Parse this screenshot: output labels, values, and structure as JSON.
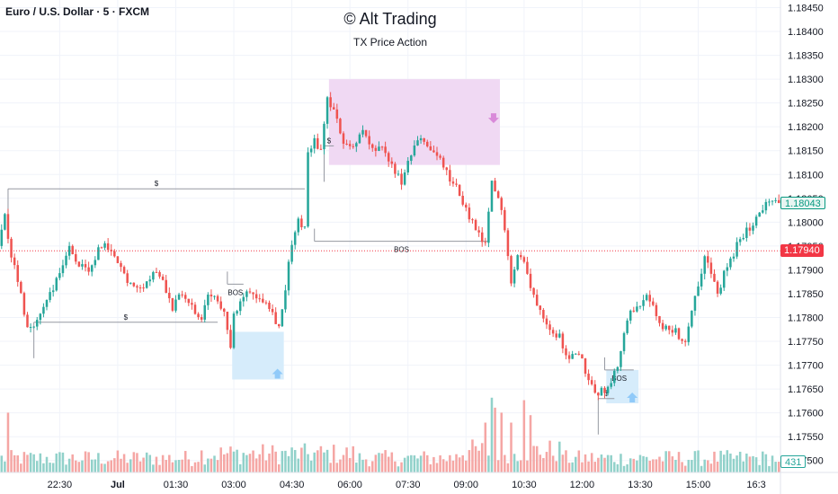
{
  "header": {
    "symbol": "Euro / U.S. Dollar · 5 · FXCM",
    "watermark_title": "© Alt Trading",
    "watermark_subtitle": "TX Price Action"
  },
  "chart_data": {
    "type": "candlestick",
    "series_name": "Euro / U.S. Dollar",
    "interval": "5",
    "source": "FXCM",
    "y_axis": {
      "ticks": [
        1.1845,
        1.184,
        1.1835,
        1.183,
        1.1825,
        1.182,
        1.1815,
        1.181,
        1.1805,
        1.18,
        1.1795,
        1.179,
        1.1785,
        1.178,
        1.1775,
        1.177,
        1.1765,
        1.176,
        1.1755,
        1.175
      ],
      "tick_labels": [
        "1.18450",
        "1.18400",
        "1.18350",
        "1.18300",
        "1.18250",
        "1.18200",
        "1.18150",
        "1.18100",
        "1.18050",
        "1.18000",
        "1.17950",
        "1.17900",
        "1.17850",
        "1.17800",
        "1.17750",
        "1.17700",
        "1.17650",
        "1.17600",
        "1.17550",
        "1.17500"
      ],
      "range": [
        1.17475,
        1.18466
      ]
    },
    "x_axis": {
      "tick_labels": [
        "22:30",
        "Jul",
        "01:30",
        "03:00",
        "04:30",
        "06:00",
        "07:30",
        "09:00",
        "10:30",
        "12:00",
        "13:30",
        "15:00",
        "16:3"
      ],
      "tick_bars": [
        18,
        36,
        54,
        72,
        90,
        108,
        126,
        144,
        162,
        180,
        198,
        216,
        234
      ],
      "bold_labels": [
        "Jul"
      ],
      "bar_count": 242
    },
    "price_path": [
      [
        0,
        1.1795
      ],
      [
        2,
        1.1801
      ],
      [
        4,
        1.1793
      ],
      [
        6,
        1.1788
      ],
      [
        9,
        1.1778
      ],
      [
        12,
        1.1779
      ],
      [
        15,
        1.1784
      ],
      [
        19,
        1.1789
      ],
      [
        22,
        1.1795
      ],
      [
        25,
        1.1791
      ],
      [
        28,
        1.1789
      ],
      [
        31,
        1.1794
      ],
      [
        34,
        1.1795
      ],
      [
        37,
        1.1791
      ],
      [
        41,
        1.1787
      ],
      [
        45,
        1.1787
      ],
      [
        49,
        1.179
      ],
      [
        51,
        1.1788
      ],
      [
        54,
        1.1782
      ],
      [
        57,
        1.1785
      ],
      [
        60,
        1.1782
      ],
      [
        63,
        1.1779
      ],
      [
        65,
        1.1785
      ],
      [
        68,
        1.1783
      ],
      [
        70,
        1.1782
      ],
      [
        72,
        1.1774
      ],
      [
        73,
        1.178
      ],
      [
        75,
        1.1783
      ],
      [
        78,
        1.1786
      ],
      [
        80,
        1.1784
      ],
      [
        83,
        1.1784
      ],
      [
        85,
        1.1781
      ],
      [
        87,
        1.1778
      ],
      [
        89,
        1.1786
      ],
      [
        91,
        1.1796
      ],
      [
        93,
        1.18
      ],
      [
        95,
        1.1799
      ],
      [
        96,
        1.1815
      ],
      [
        98,
        1.1817
      ],
      [
        100,
        1.1815
      ],
      [
        102,
        1.1826
      ],
      [
        104,
        1.1823
      ],
      [
        107,
        1.1817
      ],
      [
        110,
        1.1816
      ],
      [
        113,
        1.1819
      ],
      [
        116,
        1.1815
      ],
      [
        119,
        1.1815
      ],
      [
        122,
        1.1812
      ],
      [
        125,
        1.1808
      ],
      [
        128,
        1.1814
      ],
      [
        131,
        1.1818
      ],
      [
        134,
        1.1815
      ],
      [
        137,
        1.1813
      ],
      [
        140,
        1.1809
      ],
      [
        143,
        1.1806
      ],
      [
        146,
        1.1801
      ],
      [
        149,
        1.1797
      ],
      [
        151,
        1.1795
      ],
      [
        153,
        1.1808
      ],
      [
        155,
        1.1805
      ],
      [
        157,
        1.1799
      ],
      [
        159,
        1.1788
      ],
      [
        161,
        1.1793
      ],
      [
        163,
        1.1792
      ],
      [
        165,
        1.1786
      ],
      [
        168,
        1.1782
      ],
      [
        171,
        1.1778
      ],
      [
        174,
        1.1776
      ],
      [
        177,
        1.1771
      ],
      [
        180,
        1.1773
      ],
      [
        183,
        1.1767
      ],
      [
        186,
        1.1764
      ],
      [
        188,
        1.1765
      ],
      [
        190,
        1.1766
      ],
      [
        192,
        1.177
      ],
      [
        194,
        1.1776
      ],
      [
        196,
        1.1781
      ],
      [
        198,
        1.1782
      ],
      [
        200,
        1.1784
      ],
      [
        202,
        1.1784
      ],
      [
        204,
        1.178
      ],
      [
        206,
        1.1777
      ],
      [
        208,
        1.1778
      ],
      [
        210,
        1.1777
      ],
      [
        213,
        1.1775
      ],
      [
        215,
        1.1782
      ],
      [
        217,
        1.1787
      ],
      [
        219,
        1.1793
      ],
      [
        221,
        1.1789
      ],
      [
        223,
        1.1785
      ],
      [
        225,
        1.1789
      ],
      [
        228,
        1.1793
      ],
      [
        230,
        1.1797
      ],
      [
        232,
        1.1798
      ],
      [
        235,
        1.1801
      ],
      [
        238,
        1.1804
      ],
      [
        241,
        1.18043
      ]
    ],
    "current_price": 1.1804,
    "current_price_label": "1.18043",
    "reference_price": 1.1794,
    "reference_price_label": "1.17940",
    "volume": {
      "last_value": 431,
      "last_value_label": "431",
      "range": [
        0,
        3100
      ],
      "baseline": 600,
      "spikes": [
        {
          "bar": 2,
          "value": 2400
        },
        {
          "bar": 150,
          "value": 2000
        },
        {
          "bar": 152,
          "value": 3000
        },
        {
          "bar": 153,
          "value": 2600
        },
        {
          "bar": 155,
          "value": 2400
        },
        {
          "bar": 158,
          "value": 2000
        },
        {
          "bar": 162,
          "value": 2900
        },
        {
          "bar": 164,
          "value": 2300
        }
      ]
    },
    "annotations": [
      {
        "type": "order_block",
        "color": "#f0d9f3",
        "from_bar": 102,
        "to_bar": 154,
        "top": 1.183,
        "bottom": 1.1812,
        "arrow": "down"
      },
      {
        "type": "order_block",
        "color": "#d6ecfb",
        "from_bar": 72,
        "to_bar": 87,
        "top": 1.1777,
        "bottom": 1.1767,
        "arrow": "up"
      },
      {
        "type": "order_block",
        "color": "#d6ecfb",
        "from_bar": 188,
        "to_bar": 197,
        "top": 1.1769,
        "bottom": 1.1762,
        "arrow": "up"
      },
      {
        "type": "liquidity_line",
        "label": "$",
        "from_bar": 2,
        "to_bar": 94,
        "price": 1.1807
      },
      {
        "type": "liquidity_line",
        "label": "$",
        "from_bar": 10,
        "to_bar": 67,
        "price": 1.1779
      },
      {
        "type": "liquidity_line",
        "label": "$",
        "from_bar": 100,
        "to_bar": 103,
        "price": 1.1816
      },
      {
        "type": "liquidity_line",
        "label": "$",
        "from_bar": 185,
        "to_bar": 190,
        "price": 1.1763
      },
      {
        "type": "structure_line",
        "label": "BOS",
        "from_bar": 97,
        "to_bar": 151,
        "price": 1.1796
      },
      {
        "type": "structure_line",
        "label": "BOS",
        "from_bar": 70,
        "to_bar": 75,
        "price": 1.1787
      },
      {
        "type": "structure_line",
        "label": "BOS",
        "from_bar": 187,
        "to_bar": 196,
        "price": 1.1769
      }
    ],
    "colors": {
      "up": "#26a69a",
      "down": "#ef5350",
      "up_volume": "#91d1ca",
      "down_volume": "#f5a6a4",
      "reference_line": "#f23645",
      "current_price_bg": "#e8f5f2",
      "current_price_text": "#089981"
    }
  }
}
